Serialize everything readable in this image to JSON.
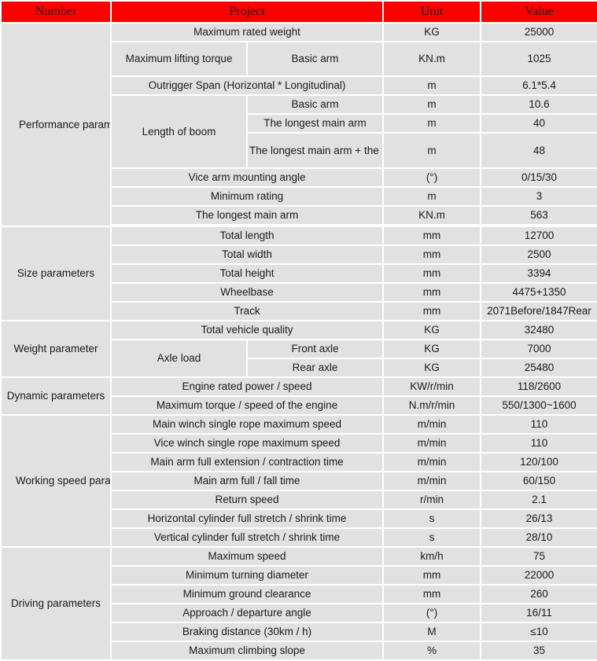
{
  "header": {
    "number": "Number",
    "project": "Project",
    "unit": "Unit",
    "value": "Value"
  },
  "groups": {
    "performance": "Performance parameters",
    "size": "Size parameters",
    "weight": "Weight parameter",
    "dynamic": "Dynamic parameters",
    "working": "Working speed parameter",
    "driving": "Driving parameters"
  },
  "sub": {
    "lifting_torque": "Maximum lifting torque",
    "boom": "Length of boom",
    "axle": "Axle load"
  },
  "rows": {
    "max_weight": {
      "label": "Maximum rated weight",
      "unit": "KG",
      "value": "25000"
    },
    "torque_basic": {
      "label": "Basic arm",
      "unit": "KN.m",
      "value": "1025"
    },
    "outrigger": {
      "label": "Outrigger Span (Horizontal * Longitudinal)",
      "unit": "m",
      "value": "6.1*5.4"
    },
    "boom_basic": {
      "label": "Basic arm",
      "unit": "m",
      "value": "10.6"
    },
    "boom_longest": {
      "label": "The longest main arm",
      "unit": "m",
      "value": "40"
    },
    "boom_vice": {
      "label": "The longest main arm + the vice arm",
      "unit": "m",
      "value": "48"
    },
    "vice_angle": {
      "label": "Vice arm mounting angle",
      "unit": "(°)",
      "value": "0/15/30"
    },
    "min_rating": {
      "label": "Minimum rating",
      "unit": "m",
      "value": "3"
    },
    "longest_arm": {
      "label": "The longest main arm",
      "unit": "KN.m",
      "value": "563"
    },
    "total_length": {
      "label": "Total length",
      "unit": "mm",
      "value": "12700"
    },
    "total_width": {
      "label": "Total width",
      "unit": "mm",
      "value": "2500"
    },
    "total_height": {
      "label": "Total height",
      "unit": "mm",
      "value": "3394"
    },
    "wheelbase": {
      "label": "Wheelbase",
      "unit": "mm",
      "value": "4475+1350"
    },
    "track": {
      "label": "Track",
      "unit": "mm",
      "value": "2071Before/1847Rear"
    },
    "vehicle_quality": {
      "label": "Total vehicle quality",
      "unit": "KG",
      "value": "32480"
    },
    "front_axle": {
      "label": "Front axle",
      "unit": "KG",
      "value": "7000"
    },
    "rear_axle": {
      "label": "Rear axle",
      "unit": "KG",
      "value": "25480"
    },
    "engine_power": {
      "label": "Engine rated power / speed",
      "unit": "KW/r/min",
      "value": "118/2600"
    },
    "engine_torque": {
      "label": "Maximum torque / speed of the engine",
      "unit": "N.m/r/min",
      "value": "550/1300~1600"
    },
    "main_winch": {
      "label": "Main winch single rope maximum speed",
      "unit": "m/min",
      "value": "110"
    },
    "vice_winch": {
      "label": "Vice winch single rope maximum speed",
      "unit": "m/min",
      "value": "110"
    },
    "arm_extension": {
      "label": "Main arm full extension / contraction time",
      "unit": "m/min",
      "value": "120/100"
    },
    "arm_fall": {
      "label": "Main arm full / fall time",
      "unit": "m/min",
      "value": "60/150"
    },
    "return_speed": {
      "label": "Return speed",
      "unit": "r/min",
      "value": "2.1"
    },
    "horizontal_cyl": {
      "label": "Horizontal cylinder full stretch / shrink time",
      "unit": "s",
      "value": "26/13"
    },
    "vertical_cyl": {
      "label": "Vertical cylinder full stretch / shrink time",
      "unit": "s",
      "value": "28/10"
    },
    "max_speed": {
      "label": "Maximum speed",
      "unit": "km/h",
      "value": "75"
    },
    "turning_diameter": {
      "label": "Minimum turning diameter",
      "unit": "mm",
      "value": "22000"
    },
    "ground_clearance": {
      "label": "Minimum ground clearance",
      "unit": "mm",
      "value": "260"
    },
    "approach_angle": {
      "label": "Approach / departure angle",
      "unit": "(°)",
      "value": "16/11"
    },
    "braking": {
      "label": "Braking distance (30km / h)",
      "unit": "M",
      "value": "≤10"
    },
    "climbing": {
      "label": "Maximum climbing slope",
      "unit": "%",
      "value": "35"
    }
  }
}
